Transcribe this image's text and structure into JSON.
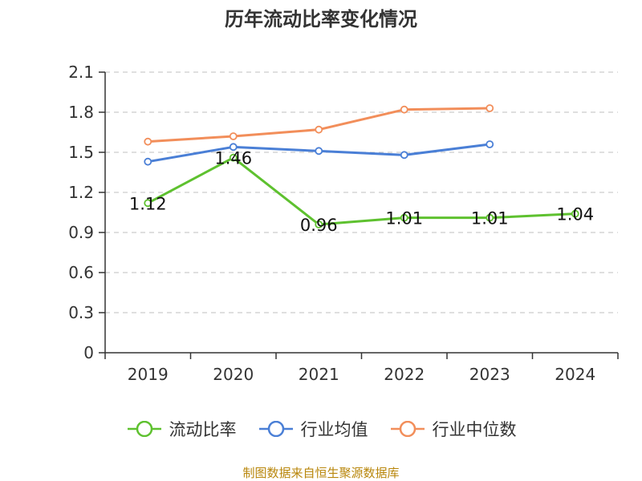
{
  "title": "历年流动比率变化情况",
  "source_note": "制图数据来自恒生聚源数据库",
  "colors": {
    "流动比率": "#5ec12f",
    "行业均值": "#4a7fd6",
    "行业中位数": "#f28e5a",
    "axis": "#333333",
    "grid": "#cccccc"
  },
  "chart_data": {
    "type": "line",
    "title": "历年流动比率变化情况",
    "xlabel": "",
    "ylabel": "",
    "categories": [
      "2019",
      "2020",
      "2021",
      "2022",
      "2023",
      "2024"
    ],
    "ylim": [
      0,
      2.1
    ],
    "yticks": [
      "0",
      "0.3",
      "0.6",
      "0.9",
      "1.2",
      "1.5",
      "1.8",
      "2.1"
    ],
    "grid": true,
    "legend_position": "bottom",
    "series": [
      {
        "name": "流动比率",
        "values": [
          1.12,
          1.46,
          0.96,
          1.01,
          1.01,
          1.04
        ],
        "data_labels": [
          "1.12",
          "1.46",
          "0.96",
          "1.01",
          "1.01",
          "1.04"
        ]
      },
      {
        "name": "行业均值",
        "values": [
          1.43,
          1.54,
          1.51,
          1.48,
          1.56,
          null
        ]
      },
      {
        "name": "行业中位数",
        "values": [
          1.58,
          1.62,
          1.67,
          1.82,
          1.83,
          null
        ]
      }
    ]
  },
  "legend": [
    {
      "label": "流动比率",
      "icon": "circle-line-icon"
    },
    {
      "label": "行业均值",
      "icon": "circle-line-icon"
    },
    {
      "label": "行业中位数",
      "icon": "circle-line-icon"
    }
  ]
}
